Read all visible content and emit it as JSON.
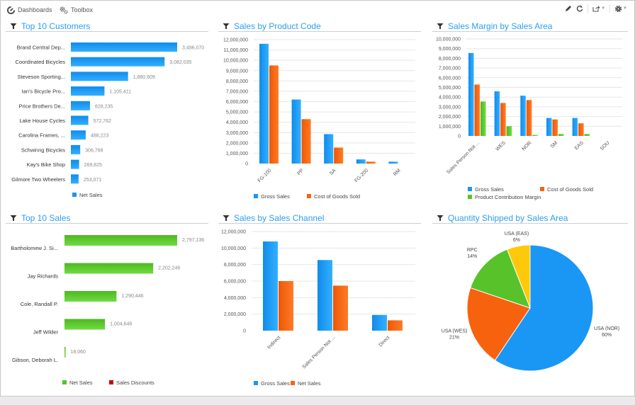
{
  "topbar": {
    "nav": [
      {
        "label": "Dashboards",
        "icon": "dashboard-icon"
      },
      {
        "label": "Toolbox",
        "icon": "gears-icon"
      }
    ],
    "tools": [
      "edit-icon",
      "refresh-icon",
      "share-icon",
      "settings-icon"
    ]
  },
  "colors": {
    "title": "#2aa0f0",
    "blue": "#1a96f5",
    "orange": "#f7620f",
    "green": "#57c22a",
    "yellow": "#fdc90a",
    "red": "#cc0000"
  },
  "panels": {
    "top_customers": {
      "title": "Top 10 Customers"
    },
    "product_code": {
      "title": "Sales by Product Code"
    },
    "sales_margin": {
      "title": "Sales Margin by Sales Area"
    },
    "top_sales": {
      "title": "Top 10 Sales"
    },
    "sales_channel": {
      "title": "Sales by Sales Channel"
    },
    "qty_shipped": {
      "title": "Quantity Shipped by Sales Area"
    }
  },
  "chart_data": [
    {
      "id": "top_customers",
      "type": "bar",
      "orientation": "horizontal",
      "title": "Top 10 Customers",
      "categories": [
        "Brand Central Dep...",
        "Coordinated Bicycles",
        "Steveson Sporting...",
        "Ian's Bicycle Pro...",
        "Price Brothers De...",
        "Lake House Cycles",
        "Carolina Frames, ...",
        "Schwinng Bicycles",
        "Kay's Bike Shop",
        "Gilmore Two Wheelers"
      ],
      "series": [
        {
          "name": "Net Sales",
          "color": "#1a96f5",
          "values": [
            3496070,
            3082035,
            1880609,
            1105411,
            628235,
            572762,
            488223,
            306768,
            269825,
            253071
          ]
        }
      ],
      "labels": [
        "3,496,070",
        "3,082,035",
        "1,880,609",
        "1,105,411",
        "628,235",
        "572,762",
        "488,223",
        "306,768",
        "269,825",
        "253,071"
      ],
      "legend": "bottom"
    },
    {
      "id": "product_code",
      "type": "bar",
      "title": "Sales by Product Code",
      "categories": [
        "FG-100",
        "PP",
        "SA",
        "FG-200",
        "RM"
      ],
      "series": [
        {
          "name": "Gross Sales",
          "color": "#1a96f5",
          "values": [
            11600000,
            6200000,
            2850000,
            400000,
            180000
          ]
        },
        {
          "name": "Cost of Goods Sold",
          "color": "#f7620f",
          "values": [
            9500000,
            4300000,
            1550000,
            180000,
            0
          ]
        }
      ],
      "ylim": [
        0,
        12000000
      ],
      "yticks": [
        "0",
        "1,000,000",
        "2,000,000",
        "3,000,000",
        "4,000,000",
        "5,000,000",
        "6,000,000",
        "7,000,000",
        "8,000,000",
        "9,000,000",
        "10,000,000",
        "11,000,000",
        "12,000,000"
      ],
      "grid": true,
      "legend": "bottom"
    },
    {
      "id": "sales_margin",
      "type": "bar",
      "title": "Sales Margin by Sales Area",
      "categories": [
        "Sales Person Not ...",
        "WES",
        "NOR",
        "SM",
        "EAS",
        "SOU"
      ],
      "series": [
        {
          "name": "Gross Sales",
          "color": "#1a96f5",
          "values": [
            8550000,
            4600000,
            4150000,
            1850000,
            1850000,
            0
          ]
        },
        {
          "name": "Cost of Goods Sold",
          "color": "#f7620f",
          "values": [
            5300000,
            3400000,
            3700000,
            1700000,
            1300000,
            0
          ]
        },
        {
          "name": "Product Contribution Margin",
          "color": "#57c22a",
          "values": [
            3550000,
            1000000,
            100000,
            200000,
            200000,
            0
          ]
        }
      ],
      "ylim": [
        0,
        10000000
      ],
      "yticks": [
        "0",
        "1,000,000",
        "2,000,000",
        "3,000,000",
        "4,000,000",
        "5,000,000",
        "6,000,000",
        "7,000,000",
        "8,000,000",
        "9,000,000",
        "10,000,000"
      ],
      "grid": true,
      "legend": "bottom"
    },
    {
      "id": "top_sales",
      "type": "bar",
      "orientation": "horizontal",
      "title": "Top 10 Sales",
      "categories": [
        "Bartholomew J. Si...",
        "Jay Richards",
        "Cole, Randall P.",
        "Jeff Wilder",
        "Gibson, Deborah L."
      ],
      "series": [
        {
          "name": "Net Sales",
          "color": "#57c22a",
          "values": [
            2797136,
            2202246,
            1290446,
            1004648,
            18060
          ]
        },
        {
          "name": "Sales Discounts",
          "color": "#cc0000",
          "values": [
            0,
            0,
            0,
            0,
            0
          ]
        }
      ],
      "labels": [
        "2,797,136",
        "2,202,246",
        "1,290,446",
        "1,004,648",
        "18,060"
      ],
      "legend": "bottom"
    },
    {
      "id": "sales_channel",
      "type": "bar",
      "title": "Sales by Sales Channel",
      "categories": [
        "Indirect",
        "Sales Person Not ...",
        "Direct"
      ],
      "series": [
        {
          "name": "Gross Sales",
          "color": "#1a96f5",
          "values": [
            10800000,
            8550000,
            1900000
          ]
        },
        {
          "name": "Net Sales",
          "color": "#f7620f",
          "values": [
            6000000,
            5450000,
            1250000
          ]
        }
      ],
      "ylim": [
        0,
        12000000
      ],
      "yticks": [
        "0",
        "2,000,000",
        "4,000,000",
        "6,000,000",
        "8,000,000",
        "10,000,000",
        "12,000,000"
      ],
      "grid": true,
      "legend": "bottom"
    },
    {
      "id": "qty_shipped",
      "type": "pie",
      "title": "Quantity Shipped by Sales Area",
      "slices": [
        {
          "label": "USA (NOR)",
          "pct": "60%",
          "value": 60,
          "color": "#1a96f5"
        },
        {
          "label": "USA (WES)",
          "pct": "21%",
          "value": 21,
          "color": "#f7620f"
        },
        {
          "label": "RPC",
          "pct": "14%",
          "value": 14,
          "color": "#57c22a"
        },
        {
          "label": "USA (EAS)",
          "pct": "6%",
          "value": 6,
          "color": "#fdc90a"
        }
      ]
    }
  ]
}
